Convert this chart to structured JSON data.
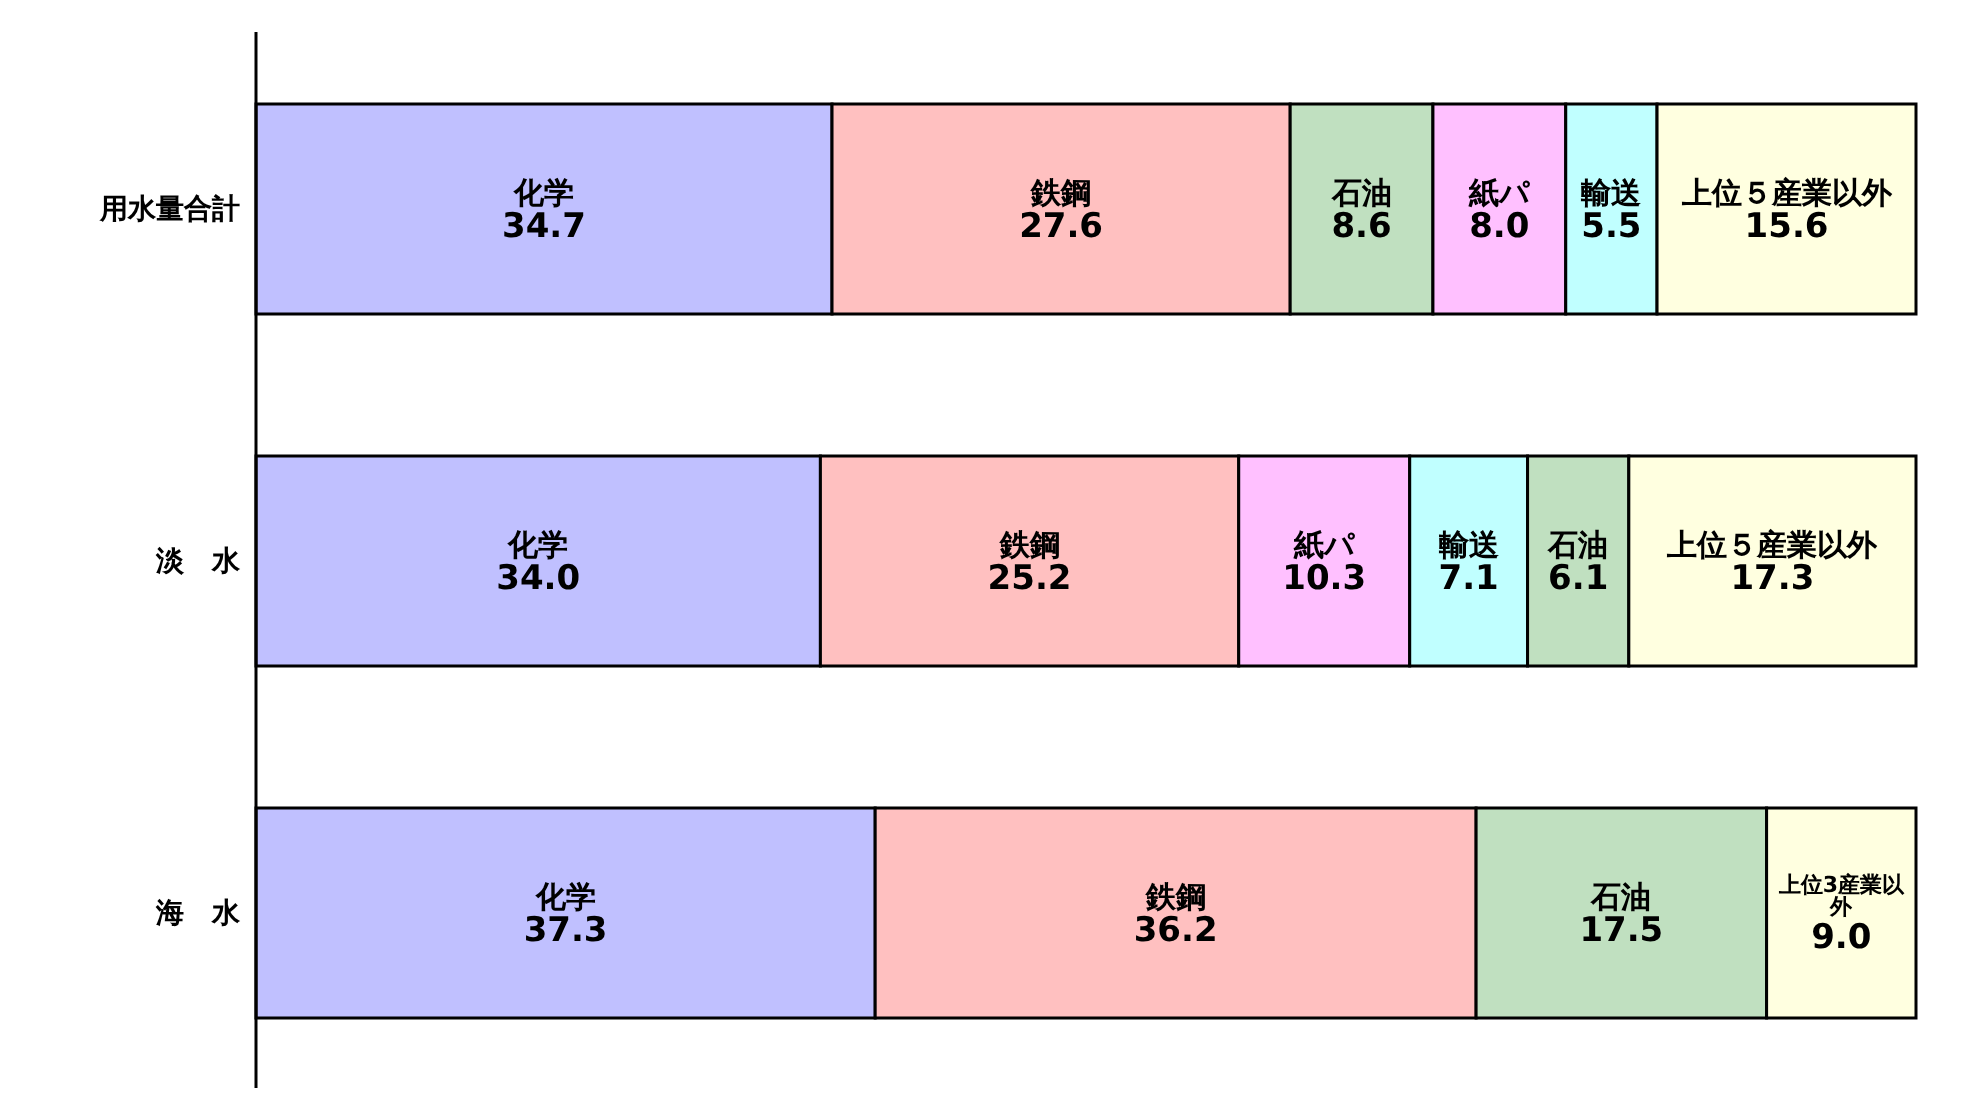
{
  "chart_data": {
    "type": "bar",
    "orientation": "horizontal",
    "stacked": true,
    "categories": [
      "用水量合計",
      "淡　水",
      "海　水"
    ],
    "series": [
      {
        "name": "化学",
        "color": "#c0c0ff",
        "values": [
          34.7,
          34.0,
          37.3
        ],
        "value_labels": [
          "34.7",
          "34.0",
          "37.3"
        ]
      },
      {
        "name": "鉄鋼",
        "color": "#ffc0c0",
        "values": [
          27.6,
          25.2,
          36.2
        ],
        "value_labels": [
          "27.6",
          "25.2",
          "36.2"
        ]
      },
      {
        "name": "石油",
        "color": "#c0e0c0",
        "values": [
          8.6,
          null,
          17.5
        ],
        "value_labels": [
          "8.6",
          null,
          "17.5"
        ]
      },
      {
        "name": "紙パ",
        "color": "#ffc0ff",
        "values": [
          8.0,
          10.3,
          null
        ],
        "value_labels": [
          "8.0",
          "10.3",
          null
        ]
      },
      {
        "name": "輸送",
        "color": "#c0ffff",
        "values": [
          5.5,
          7.1,
          null
        ],
        "value_labels": [
          "5.5",
          "7.1",
          null
        ]
      },
      {
        "name": "石油",
        "color": "#c0e0c0",
        "values": [
          null,
          6.1,
          null
        ],
        "value_labels": [
          null,
          "6.1",
          null
        ]
      },
      {
        "name": "上位５産業以外",
        "color": "#ffffe0",
        "values": [
          15.6,
          17.3,
          null
        ],
        "value_labels": [
          "15.6",
          "17.3",
          null
        ]
      },
      {
        "name": "上位3産業以外",
        "color": "#ffffe0",
        "values": [
          null,
          null,
          9.0
        ],
        "value_labels": [
          null,
          null,
          "9.0"
        ]
      }
    ]
  }
}
